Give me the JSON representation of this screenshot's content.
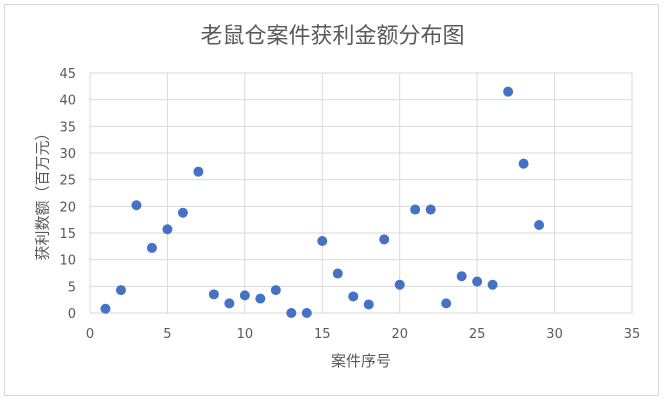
{
  "chart_data": {
    "type": "scatter",
    "title": "老鼠仓案件获利金额分布图",
    "xlabel": "案件序号",
    "ylabel": "获利数额（百万元）",
    "xlim": [
      0,
      35
    ],
    "ylim": [
      0,
      45
    ],
    "xticks": [
      0,
      5,
      10,
      15,
      20,
      25,
      30,
      35
    ],
    "yticks": [
      0,
      5,
      10,
      15,
      20,
      25,
      30,
      35,
      40,
      45
    ],
    "grid": true,
    "marker_color": "#4472c4",
    "x": [
      1,
      2,
      3,
      4,
      5,
      6,
      7,
      8,
      9,
      10,
      11,
      12,
      13,
      14,
      15,
      16,
      17,
      18,
      19,
      20,
      21,
      22,
      23,
      24,
      25,
      26,
      27,
      28,
      29
    ],
    "y": [
      0.8,
      4.3,
      20.2,
      12.2,
      15.7,
      18.8,
      26.5,
      3.5,
      1.8,
      3.3,
      2.7,
      4.3,
      0,
      0,
      13.5,
      7.4,
      3.1,
      1.6,
      13.8,
      5.3,
      19.4,
      19.4,
      1.8,
      6.9,
      5.9,
      5.3,
      41.5,
      28,
      16.5
    ]
  }
}
